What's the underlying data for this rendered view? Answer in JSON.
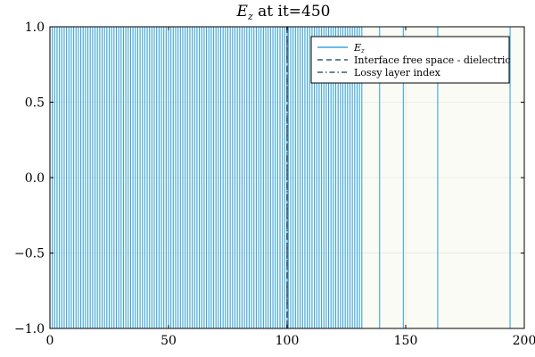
{
  "chart_data": {
    "type": "line",
    "title_main": "E",
    "title_sub": "z",
    "title_rest": " at it=450",
    "xlabel": "",
    "ylabel": "",
    "xlim": [
      0,
      200
    ],
    "ylim": [
      -1.0,
      1.0
    ],
    "x_ticks": [
      0,
      50,
      100,
      150,
      200
    ],
    "x_tick_labels": [
      "0",
      "50",
      "100",
      "150",
      "200"
    ],
    "y_ticks": [
      -1.0,
      -0.5,
      0.0,
      0.5,
      1.0
    ],
    "y_tick_labels": [
      "−1.0",
      "−0.5",
      "0.0",
      "0.5",
      "1.0"
    ],
    "grid": true,
    "legend_position": "top-right",
    "series": [
      {
        "name_main": "E",
        "name_sub": "z",
        "style": "solid",
        "color": "#3aa6e0",
        "dense_from": 0,
        "dense_to": 100,
        "dense_step": 1,
        "sparse_x": [
          100.5,
          101.5,
          102.5,
          103.5,
          104.5,
          105.5,
          106.5,
          107.5,
          108.5,
          109.5,
          110.5,
          111.5,
          112.5,
          113.5,
          114.5,
          115.5,
          116.5,
          117.5,
          118.5,
          119.5,
          120.5,
          121.5,
          122.5,
          123.5,
          124.5,
          125.5,
          126.5,
          127.5,
          128.5,
          129.5,
          130.5,
          131.5,
          139,
          149,
          163.5,
          194
        ]
      },
      {
        "name": "Interface free space - dielectric",
        "style": "dash",
        "color": "#3a5a6e",
        "x": 100
      },
      {
        "name": "Lossy layer index",
        "style": "dashdot",
        "color": "#3a5a6e",
        "x": 100
      }
    ],
    "colors": {
      "background": "#fbfbf5",
      "grid": "#e7e7e2",
      "axis": "#000000"
    }
  }
}
